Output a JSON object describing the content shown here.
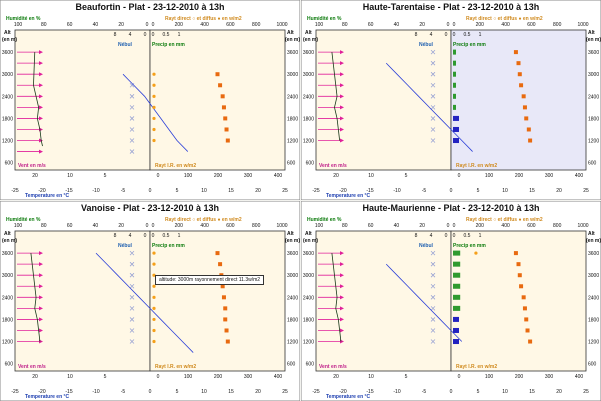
{
  "labels": {
    "humidite": "Humidité en %",
    "nebul": "Nébul",
    "rayt_direct": "Rayt direct ○ et diffus ● en w/m2",
    "precip": "Precip en mm",
    "vent": "Vent en m/s",
    "temperature": "Temperature en °C",
    "alt": "Alt",
    "alt_unit": "(en m)",
    "rayt_ir": "Rayt I.R. en w/m2"
  },
  "axes": {
    "humidite_ticks": [
      "100",
      "80",
      "60",
      "40",
      "20",
      "0"
    ],
    "nebul_ticks": [
      "8",
      "4",
      "0"
    ],
    "precip_ticks": [
      "0",
      "0.5",
      "1"
    ],
    "rayt_top_ticks": [
      "0",
      "200",
      "400",
      "600",
      "800",
      "1000"
    ],
    "alt_ticks": [
      "3600",
      "3000",
      "2400",
      "1800",
      "1200",
      "600"
    ],
    "vent_ticks": [
      "20",
      "10",
      "5"
    ],
    "temp_ticks": [
      "-25",
      "-20",
      "-15",
      "-10",
      "-5",
      "0",
      "5",
      "10",
      "15",
      "20",
      "25"
    ],
    "rayt_ir_ticks": [
      "0",
      "100",
      "200",
      "300",
      "400"
    ]
  },
  "tooltip": "altitude: 3000m  rayonnement direct 11.3w/m2",
  "colors": {
    "panel1_bg": "#fff8e6",
    "panel2_bg": "#e8e8f8",
    "humidity_line": "#1a3a1a",
    "temperature_line": "#2b3fd8",
    "nebul_mark": "#9aa4d4",
    "precip_green": "#2f9a2f",
    "precip_blue": "#2222c0",
    "rayt_direct": "#f5a01a",
    "rayt_diffus": "#e86a10",
    "wind": "#e0209a"
  },
  "chart_data": [
    {
      "type": "line",
      "title": "Beaufortin - Plat - 23-12-2010 à 13h",
      "altitudes": [
        3600,
        3300,
        3000,
        2700,
        2400,
        2100,
        1800,
        1500,
        1200,
        900
      ],
      "wind_levels": [
        3600,
        3300,
        3000,
        2700,
        2400,
        2100,
        1800,
        1500,
        1200,
        900
      ],
      "wind_speed_ms": [
        9,
        9,
        9,
        9,
        9,
        9,
        9,
        9,
        9,
        9
      ],
      "humidity": {
        "altitudes": [
          3600,
          2700,
          2100,
          1800,
          1500,
          1200,
          1050
        ],
        "values": [
          87,
          88,
          84,
          85,
          83,
          82,
          81
        ]
      },
      "temperature": {
        "altitudes": [
          3000,
          2700,
          2400,
          2100,
          1800,
          1500,
          1200,
          900
        ],
        "values": [
          -5,
          -3,
          -1,
          0.5,
          2,
          3.5,
          5,
          7
        ]
      },
      "nebul": {
        "altitudes": [
          2700,
          2400,
          2100,
          1800,
          1500,
          1200,
          900
        ],
        "values": [
          1,
          1,
          1,
          1,
          1,
          1,
          1
        ]
      },
      "precip": {
        "altitudes": [
          3000,
          2700,
          2400,
          2100,
          1800,
          1500,
          1200
        ],
        "values": [
          0,
          0,
          0,
          0,
          0,
          0,
          0
        ]
      },
      "rayt_diffus": {
        "altitudes": [
          3000,
          2700,
          2400,
          2100,
          1800,
          1500,
          1200
        ],
        "values": [
          500,
          520,
          540,
          550,
          560,
          570,
          580
        ]
      }
    },
    {
      "type": "line",
      "title": "Haute-Tarentaise - Plat - 23-12-2010 à 13h",
      "altitudes": [
        3600,
        3300,
        3000,
        2700,
        2400,
        2100,
        1800,
        1500,
        1200,
        900
      ],
      "wind_levels": [
        3600,
        3300,
        3000,
        2700,
        2400,
        2100,
        1800,
        1500,
        1200
      ],
      "wind_speed_ms": [
        9,
        9,
        9,
        9,
        9,
        9,
        9,
        9,
        9
      ],
      "humidity": {
        "altitudes": [
          3600,
          3000,
          2400,
          2100,
          1800,
          1500,
          1200
        ],
        "values": [
          90,
          88,
          86,
          88,
          86,
          85,
          84
        ]
      },
      "temperature": {
        "altitudes": [
          3300,
          3000,
          2700,
          2400,
          2100,
          1800,
          1500,
          1200,
          900
        ],
        "values": [
          -12,
          -10,
          -8,
          -6,
          -4,
          -2,
          0,
          2,
          4
        ]
      },
      "nebul": {
        "altitudes": [
          3600,
          3300,
          3000,
          2700,
          2400,
          2100,
          1800,
          1500,
          1200
        ],
        "values": [
          1,
          1,
          1,
          1,
          1,
          1,
          1,
          1,
          1
        ]
      },
      "precip": {
        "altitudes": [
          3600,
          3300,
          3000,
          2700,
          2400,
          2100,
          1800,
          1500,
          1200
        ],
        "values": [
          0.05,
          0.05,
          0.05,
          0.05,
          0.05,
          0.05,
          0.1,
          0.1,
          0.1
        ]
      },
      "precip_color": [
        "green",
        "green",
        "green",
        "green",
        "green",
        "green",
        "blue",
        "blue",
        "blue"
      ],
      "rayt_diffus": {
        "altitudes": [
          3600,
          3300,
          3000,
          2700,
          2400,
          2100,
          1800,
          1500,
          1200
        ],
        "values": [
          480,
          500,
          510,
          520,
          540,
          550,
          560,
          580,
          590
        ]
      }
    },
    {
      "type": "line",
      "title": "Vanoise - Plat - 23-12-2010 à 13h",
      "altitudes": [
        3600,
        3300,
        3000,
        2700,
        2400,
        2100,
        1800,
        1500,
        1200,
        900
      ],
      "wind_levels": [
        3600,
        3300,
        3000,
        2700,
        2400,
        2100,
        1800,
        1500,
        1200
      ],
      "wind_speed_ms": [
        9,
        9,
        9,
        9,
        9,
        9,
        9,
        9,
        9
      ],
      "humidity": {
        "altitudes": [
          3600,
          3000,
          2400,
          2100,
          1800,
          1500,
          1200
        ],
        "values": [
          90,
          88,
          86,
          87,
          85,
          84,
          83
        ]
      },
      "temperature": {
        "altitudes": [
          3600,
          3300,
          3000,
          2700,
          2400,
          2100,
          1800,
          1500,
          1200,
          900
        ],
        "values": [
          -10,
          -8,
          -6,
          -4,
          -2,
          0,
          2,
          4,
          6,
          8
        ]
      },
      "nebul": {
        "altitudes": [
          3600,
          3300,
          3000,
          2700,
          2400,
          2100,
          1800,
          1500,
          1200
        ],
        "values": [
          1,
          1,
          1,
          1,
          1,
          1,
          1,
          1,
          1
        ]
      },
      "precip": {
        "altitudes": [
          3600,
          3300,
          3000,
          2700,
          2400,
          2100,
          1800,
          1500,
          1200
        ],
        "values": [
          0,
          0,
          0,
          0,
          0,
          0,
          0,
          0,
          0
        ]
      },
      "rayt_diffus": {
        "altitudes": [
          3600,
          3300,
          3000,
          2700,
          2400,
          2100,
          1800,
          1500,
          1200
        ],
        "values": [
          500,
          520,
          530,
          540,
          550,
          560,
          560,
          570,
          580
        ]
      }
    },
    {
      "type": "line",
      "title": "Haute-Maurienne - Plat - 23-12-2010 à 13h",
      "altitudes": [
        3600,
        3300,
        3000,
        2700,
        2400,
        2100,
        1800,
        1500,
        1200,
        900
      ],
      "wind_levels": [
        3600,
        3300,
        3000,
        2700,
        2400,
        2100,
        1800,
        1500,
        1200
      ],
      "wind_speed_ms": [
        9,
        9,
        9,
        9,
        9,
        9,
        9,
        9,
        9
      ],
      "humidity": {
        "altitudes": [
          3600,
          3000,
          2400,
          2100,
          1800,
          1500,
          1200
        ],
        "values": [
          90,
          88,
          86,
          87,
          85,
          84,
          83
        ]
      },
      "temperature": {
        "altitudes": [
          3300,
          3000,
          2700,
          2400,
          2100,
          1800,
          1500,
          1200
        ],
        "values": [
          -12,
          -10,
          -8,
          -6,
          -4,
          -2,
          0,
          2
        ]
      },
      "nebul": {
        "altitudes": [
          3600,
          3300,
          3000,
          2700,
          2400,
          2100,
          1800,
          1500,
          1200
        ],
        "values": [
          1,
          1,
          1,
          1,
          1,
          1,
          1,
          1,
          1
        ]
      },
      "precip": {
        "altitudes": [
          3600,
          3300,
          3000,
          2700,
          2400,
          2100,
          1800,
          1500,
          1200
        ],
        "values": [
          0.12,
          0.12,
          0.12,
          0.12,
          0.12,
          0.12,
          0.1,
          0.1,
          0.1
        ]
      },
      "precip_color": [
        "green",
        "green",
        "green",
        "green",
        "green",
        "green",
        "blue",
        "blue",
        "blue"
      ],
      "rayt_direct": {
        "altitudes": [
          3600
        ],
        "values": [
          170
        ]
      },
      "rayt_diffus": {
        "altitudes": [
          3600,
          3300,
          3000,
          2700,
          2400,
          2100,
          1800,
          1500,
          1200
        ],
        "values": [
          480,
          500,
          510,
          520,
          540,
          550,
          560,
          570,
          590
        ]
      }
    }
  ]
}
